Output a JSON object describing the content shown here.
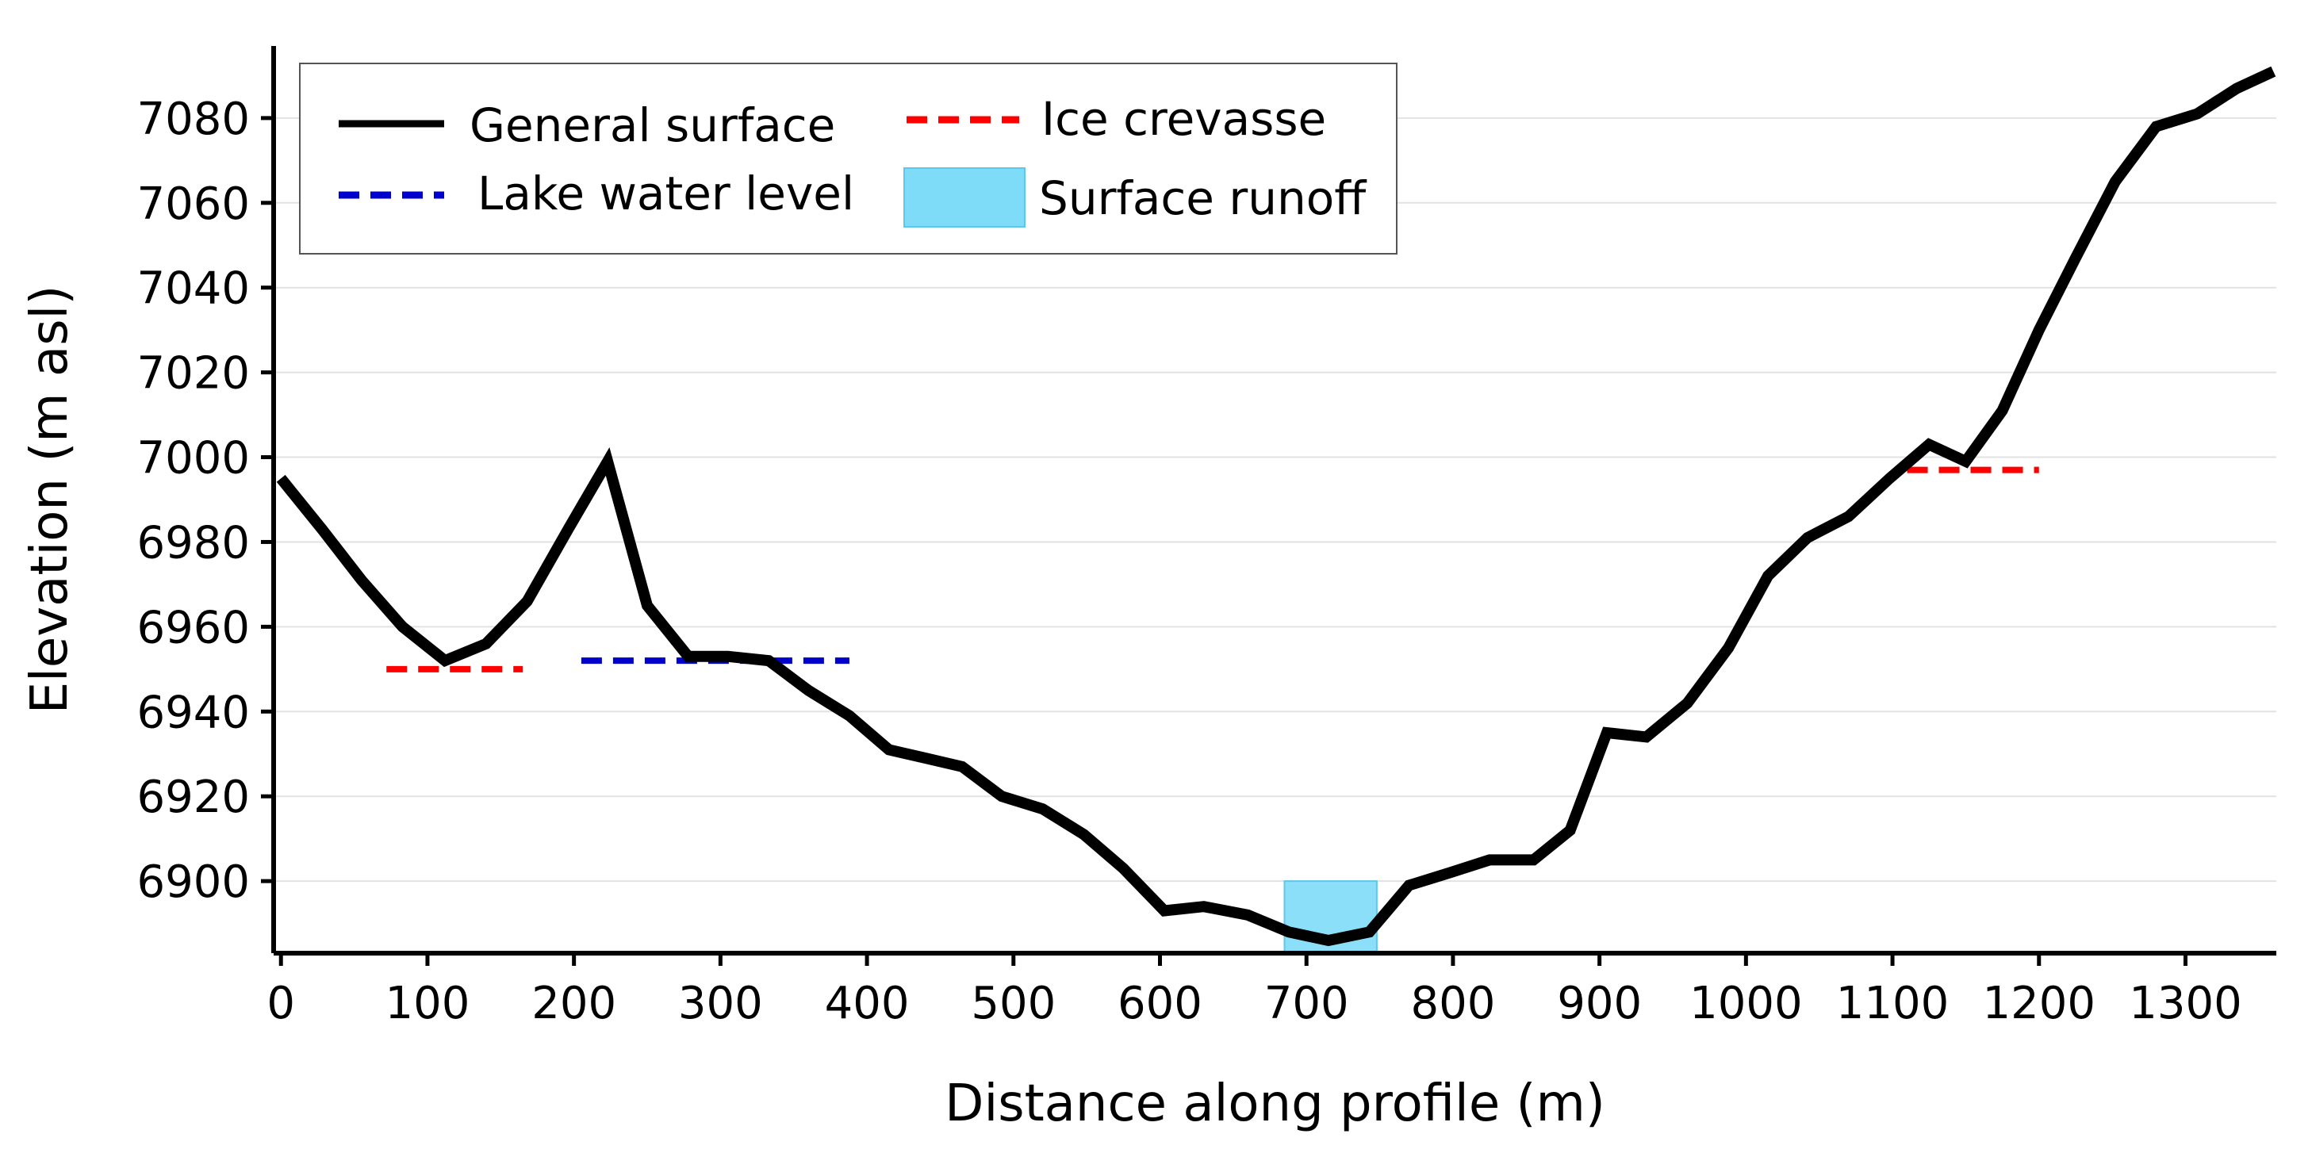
{
  "chart_data": {
    "type": "line",
    "title": "",
    "xlabel": "Distance along profile (m)",
    "ylabel": "Elevation (m asl)",
    "xlim": [
      -5,
      1362
    ],
    "ylim": [
      6883,
      7097
    ],
    "xticks": [
      0,
      100,
      200,
      300,
      400,
      500,
      600,
      700,
      800,
      900,
      1000,
      1100,
      1200,
      1300
    ],
    "yticks": [
      6900,
      6920,
      6940,
      6960,
      6980,
      7000,
      7020,
      7040,
      7060,
      7080
    ],
    "grid": "horizontal",
    "legend_position": "top-left",
    "colors": {
      "surface": "#000000",
      "crevasse": "#ff0000",
      "lake": "#0000cc",
      "runoff": "#7fdcf8"
    },
    "series": [
      {
        "name": "General surface",
        "style": "solid",
        "x": [
          0,
          28,
          55,
          83,
          112,
          140,
          168,
          196,
          223,
          250,
          278,
          305,
          333,
          360,
          388,
          415,
          440,
          465,
          492,
          520,
          548,
          575,
          603,
          630,
          660,
          688,
          715,
          743,
          770,
          798,
          825,
          855,
          880,
          905,
          932,
          960,
          988,
          1015,
          1042,
          1070,
          1098,
          1125,
          1150,
          1175,
          1200,
          1225,
          1252,
          1280,
          1308,
          1335,
          1360
        ],
        "y": [
          6995,
          6983,
          6971,
          6960,
          6952,
          6956,
          6966,
          6983,
          6999,
          6965,
          6953,
          6953,
          6952,
          6945,
          6939,
          6931,
          6929,
          6927,
          6920,
          6917,
          6911,
          6903,
          6893,
          6894,
          6892,
          6888,
          6886,
          6888,
          6899,
          6902,
          6905,
          6905,
          6912,
          6935,
          6934,
          6942,
          6955,
          6972,
          6981,
          6986,
          6995,
          7003,
          6999,
          7011,
          7030,
          7047,
          7065,
          7078,
          7081,
          7087,
          7091
        ]
      },
      {
        "name": "Ice crevasse",
        "style": "dashed",
        "segments": [
          {
            "x": [
              72,
              165
            ],
            "y": [
              6950,
              6950
            ]
          },
          {
            "x": [
              1110,
              1200
            ],
            "y": [
              6997,
              6997
            ]
          }
        ]
      },
      {
        "name": "Lake water level",
        "style": "dashed",
        "segments": [
          {
            "x": [
              205,
              388
            ],
            "y": [
              6952,
              6952
            ]
          }
        ]
      },
      {
        "name": "Surface runoff",
        "style": "area",
        "region": {
          "x": [
            685,
            748
          ],
          "y": [
            6883,
            6900
          ]
        }
      }
    ]
  }
}
